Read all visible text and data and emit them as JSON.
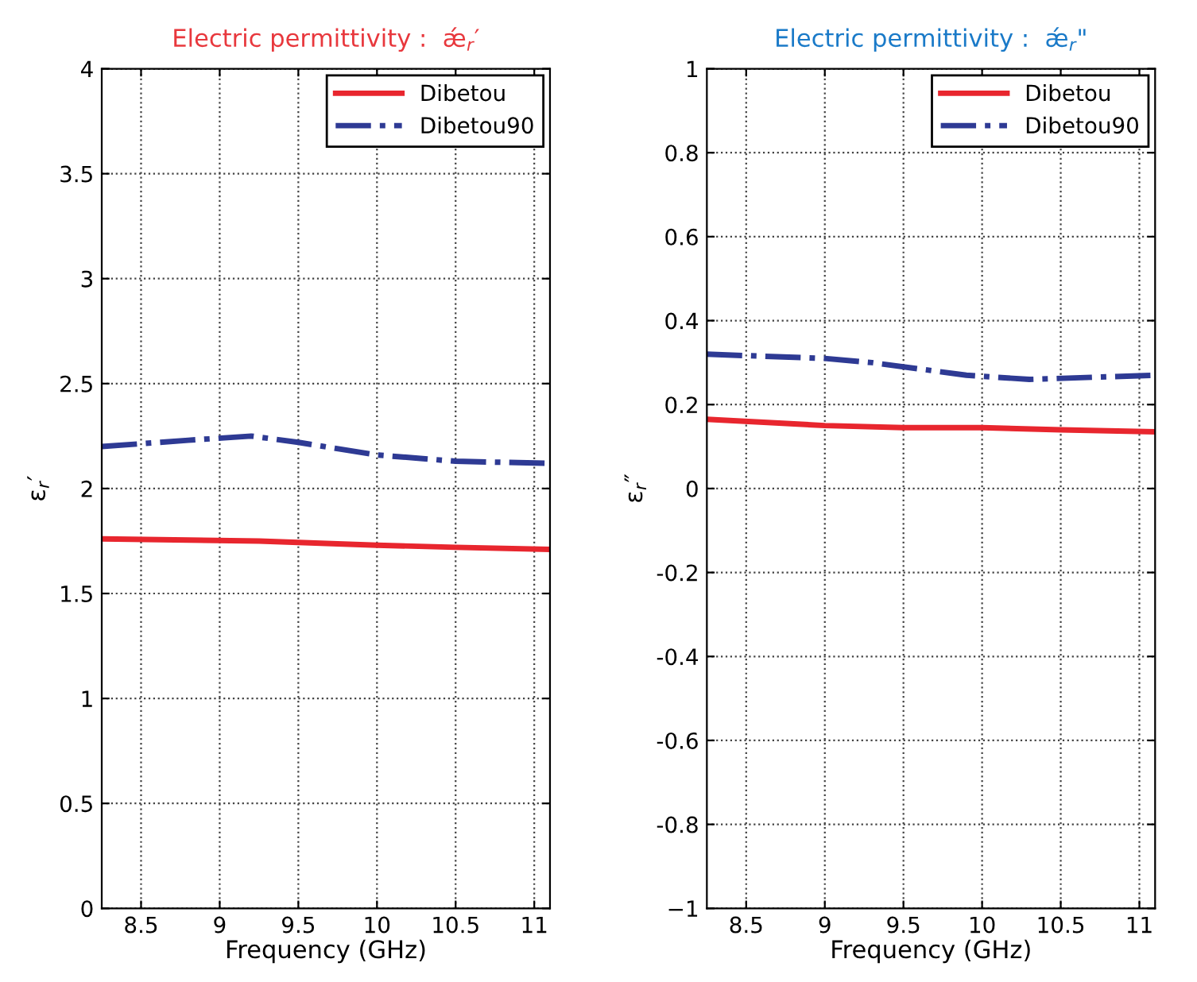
{
  "chart_data": [
    {
      "type": "line",
      "title": "Electric permittivity :  ǽ$_{r}$′",
      "xlabel": "Frequency (GHz)",
      "ylabel": "ε$_{r}$′",
      "xlim": [
        8.25,
        11.1
      ],
      "xticks": [
        8.5,
        9,
        9.5,
        10,
        10.5,
        11
      ],
      "ylim": [
        0,
        4
      ],
      "yticks": [
        0,
        0.5,
        1,
        1.5,
        2,
        2.5,
        3,
        3.5,
        4
      ],
      "grid": true,
      "legend": "top right",
      "series": [
        {
          "name": "Dibetou",
          "color": "#e8262e",
          "line_style": "solid",
          "x": [
            8.25,
            9.25,
            10,
            10.5,
            11.1
          ],
          "values": [
            1.76,
            1.75,
            1.73,
            1.72,
            1.71
          ]
        },
        {
          "name": "Dibetou90",
          "color": "#2e3a94",
          "line_style": "dashdot",
          "x": [
            8.25,
            8.8,
            9.2,
            9.5,
            10,
            10.5,
            11.1
          ],
          "values": [
            2.2,
            2.23,
            2.25,
            2.22,
            2.16,
            2.13,
            2.12
          ]
        }
      ]
    },
    {
      "type": "line",
      "title": "Electric permittivity :  ǽ$_{r}$\"",
      "xlabel": "Frequency (GHz)",
      "ylabel": "ε$_{r}$″",
      "xlim": [
        8.25,
        11.1
      ],
      "xticks": [
        8.5,
        9,
        9.5,
        10,
        10.5,
        11
      ],
      "ylim": [
        -1,
        1
      ],
      "yticks": [
        {
          "value": -1,
          "label": "−1"
        },
        -0.8,
        -0.6,
        -0.4,
        -0.2,
        0,
        0.2,
        0.4,
        0.6,
        0.8,
        1
      ],
      "grid": true,
      "legend": "top right",
      "series": [
        {
          "name": "Dibetou",
          "color": "#e8262e",
          "line_style": "solid",
          "x": [
            8.25,
            9,
            9.5,
            10,
            10.5,
            11.1
          ],
          "values": [
            0.165,
            0.15,
            0.145,
            0.145,
            0.14,
            0.135
          ]
        },
        {
          "name": "Dibetou90",
          "color": "#2e3a94",
          "line_style": "dashdot",
          "x": [
            8.25,
            9,
            9.3,
            9.9,
            10.3,
            10.7,
            11.1
          ],
          "values": [
            0.32,
            0.31,
            0.3,
            0.27,
            0.26,
            0.265,
            0.27
          ]
        }
      ]
    }
  ]
}
